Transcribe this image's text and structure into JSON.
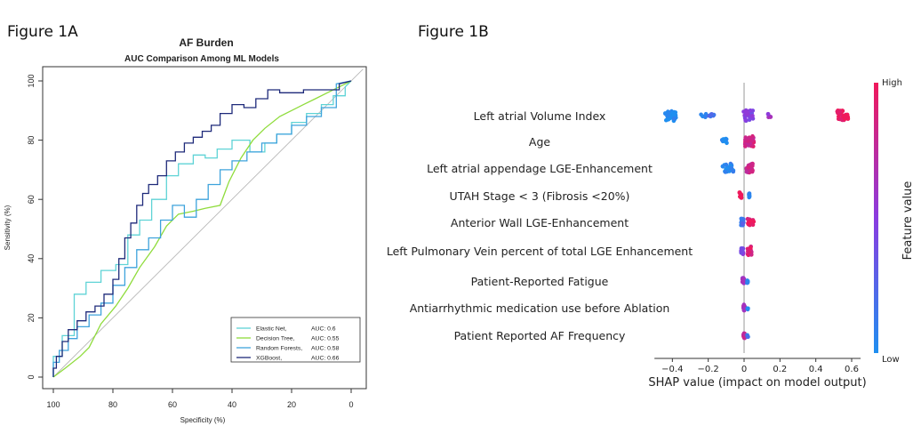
{
  "figure_a_label": "Figure 1A",
  "figure_b_label": "Figure 1B",
  "chart_data": [
    {
      "type": "line",
      "title": "AF Burden",
      "subtitle": "AUC Comparison Among ML Models",
      "xlabel": "Specificity (%)",
      "ylabel": "Sensitivity (%)",
      "xlim": [
        100,
        0
      ],
      "ylim": [
        0,
        100
      ],
      "xticks": [
        "100",
        "80",
        "60",
        "40",
        "20",
        "0"
      ],
      "yticks": [
        "0",
        "20",
        "40",
        "60",
        "80",
        "100"
      ],
      "legend_position": "bottom-right",
      "diagonal_reference": true,
      "series": [
        {
          "name": "Elastic Net,",
          "auc_label": "AUC: 0.6",
          "color": "#5fd3d6",
          "x": [
            100,
            100,
            97,
            97,
            93,
            93,
            89,
            89,
            84,
            84,
            79,
            79,
            75,
            75,
            71,
            71,
            67,
            67,
            62,
            62,
            58,
            58,
            53,
            53,
            49,
            49,
            45,
            45,
            40,
            40,
            34,
            34,
            29,
            29,
            25,
            25,
            20,
            20,
            15,
            15,
            10,
            10,
            6,
            6,
            2,
            2,
            0
          ],
          "y": [
            0,
            7,
            7,
            14,
            14,
            28,
            28,
            32,
            32,
            36,
            36,
            38,
            38,
            48,
            48,
            53,
            53,
            60,
            60,
            68,
            68,
            72,
            72,
            75,
            75,
            74,
            74,
            77,
            77,
            80,
            80,
            76,
            76,
            79,
            79,
            82,
            82,
            86,
            86,
            89,
            89,
            92,
            92,
            95,
            95,
            98,
            100
          ]
        },
        {
          "name": "Decision Tree,",
          "auc_label": "AUC: 0.55",
          "color": "#8fdc3c",
          "x": [
            100,
            96,
            91,
            88,
            84,
            79,
            75,
            71,
            66,
            62,
            58,
            53,
            49,
            44,
            41,
            37,
            33,
            29,
            24,
            20,
            16,
            12,
            8,
            4,
            0
          ],
          "y": [
            0,
            3,
            7,
            10,
            18,
            24,
            30,
            37,
            44,
            51,
            55,
            56,
            57,
            58,
            66,
            74,
            80,
            84,
            88,
            90,
            92,
            94,
            96,
            98,
            100
          ]
        },
        {
          "name": "Random Forests,",
          "auc_label": "AUC: 0.58",
          "color": "#3ea3dc",
          "x": [
            100,
            100,
            98,
            98,
            95,
            95,
            92,
            92,
            88,
            88,
            84,
            84,
            80,
            80,
            76,
            76,
            72,
            72,
            68,
            68,
            64,
            64,
            60,
            60,
            56,
            56,
            52,
            52,
            48,
            48,
            44,
            44,
            40,
            40,
            35,
            35,
            30,
            30,
            25,
            25,
            20,
            20,
            15,
            15,
            10,
            10,
            5,
            5,
            0
          ],
          "y": [
            0,
            5,
            5,
            9,
            9,
            13,
            13,
            17,
            17,
            21,
            21,
            25,
            25,
            31,
            31,
            37,
            37,
            43,
            43,
            47,
            47,
            53,
            53,
            58,
            58,
            54,
            54,
            60,
            60,
            65,
            65,
            70,
            70,
            73,
            73,
            76,
            76,
            79,
            79,
            82,
            82,
            85,
            85,
            88,
            88,
            91,
            91,
            99,
            100
          ]
        },
        {
          "name": "XGBoost,",
          "auc_label": "AUC: 0.66",
          "color": "#1e2a7a",
          "x": [
            100,
            100,
            99,
            99,
            97,
            97,
            95,
            95,
            92,
            92,
            89,
            89,
            86,
            86,
            83,
            83,
            80,
            80,
            78,
            78,
            76,
            76,
            74,
            74,
            72,
            72,
            70,
            70,
            68,
            68,
            65,
            65,
            62,
            62,
            59,
            59,
            56,
            56,
            53,
            53,
            50,
            50,
            47,
            47,
            44,
            44,
            40,
            40,
            36,
            36,
            32,
            32,
            28,
            28,
            24,
            24,
            20,
            20,
            16,
            16,
            12,
            12,
            8,
            8,
            4,
            4,
            0
          ],
          "y": [
            0,
            3,
            3,
            7,
            7,
            12,
            12,
            16,
            16,
            19,
            19,
            22,
            22,
            24,
            24,
            28,
            28,
            33,
            33,
            40,
            40,
            47,
            47,
            52,
            52,
            58,
            58,
            62,
            62,
            65,
            65,
            68,
            68,
            73,
            73,
            76,
            76,
            79,
            79,
            81,
            81,
            83,
            83,
            85,
            85,
            89,
            89,
            92,
            92,
            91,
            91,
            94,
            94,
            97,
            97,
            96,
            96,
            96,
            96,
            97,
            97,
            97,
            97,
            97,
            97,
            99,
            100
          ]
        }
      ]
    },
    {
      "type": "scatter",
      "subtype": "shap-beeswarm",
      "xlabel": "SHAP value (impact on model output)",
      "xlim": [
        -0.5,
        0.65
      ],
      "xticks": [
        -0.4,
        -0.2,
        0,
        0.2,
        0.4,
        0.6
      ],
      "xtick_labels": [
        "−0.4",
        "−0.2",
        "0",
        "0.2",
        "0.4",
        "0.6"
      ],
      "colorbar": {
        "high_label": "High",
        "low_label": "Low",
        "title": "Feature value",
        "low_color": "#1f8ff0",
        "mid_color": "#8a3ce0",
        "high_color": "#f0195a"
      },
      "features": [
        {
          "name": "Left atrial Volume Index",
          "clusters": [
            [
              -0.41,
              0.03,
              40,
              0
            ],
            [
              -0.22,
              0.02,
              6,
              0.05
            ],
            [
              -0.18,
              0.02,
              6,
              0.15
            ],
            [
              0.02,
              0.03,
              30,
              0.45
            ],
            [
              0.14,
              0.01,
              6,
              0.6
            ],
            [
              0.55,
              0.03,
              40,
              1
            ]
          ]
        },
        {
          "name": "Age",
          "clusters": [
            [
              -0.11,
              0.015,
              10,
              0
            ],
            [
              0.03,
              0.025,
              34,
              0.85
            ]
          ]
        },
        {
          "name": "Left atrial appendage LGE-Enhancement",
          "clusters": [
            [
              -0.09,
              0.03,
              24,
              0.05
            ],
            [
              0.03,
              0.02,
              24,
              0.8
            ]
          ]
        },
        {
          "name": "UTAH Stage < 3 (Fibrosis <20%)",
          "clusters": [
            [
              -0.02,
              0.006,
              14,
              1
            ],
            [
              0.03,
              0.004,
              8,
              0.05
            ]
          ]
        },
        {
          "name": "Anterior Wall LGE-Enhancement",
          "clusters": [
            [
              -0.01,
              0.008,
              18,
              0.2
            ],
            [
              0.04,
              0.02,
              16,
              0.95
            ]
          ]
        },
        {
          "name": "Left Pulmonary Vein percent of total LGE Enhancement",
          "clusters": [
            [
              -0.01,
              0.007,
              18,
              0.45
            ],
            [
              0.03,
              0.012,
              22,
              0.9
            ]
          ]
        },
        {
          "name": "Patient-Reported Fatigue",
          "clusters": [
            [
              -0.005,
              0.005,
              14,
              0.6
            ],
            [
              0.02,
              0.004,
              6,
              0.05
            ]
          ]
        },
        {
          "name": "Antiarrhythmic medication use before Ablation",
          "clusters": [
            [
              0.0,
              0.004,
              16,
              0.7
            ],
            [
              0.02,
              0.003,
              4,
              0.1
            ]
          ]
        },
        {
          "name": "Patient Reported AF Frequency",
          "clusters": [
            [
              0.0,
              0.004,
              16,
              0.75
            ],
            [
              0.02,
              0.003,
              4,
              0.15
            ]
          ]
        }
      ]
    }
  ]
}
